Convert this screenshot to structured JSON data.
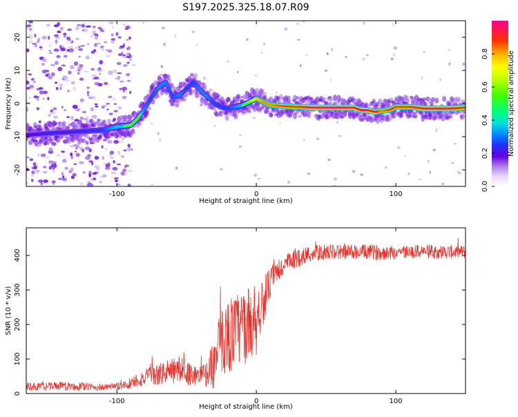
{
  "title": "S197.2025.325.18.07.R09",
  "colors": {
    "snr_line": "#e8322c",
    "axis": "#000000",
    "colormap": [
      "#ffffff",
      "#d8b8f0",
      "#a060e8",
      "#6a00e0",
      "#3050ff",
      "#00d0ff",
      "#00ff80",
      "#40ff00",
      "#ffff00",
      "#ffb000",
      "#ff3000",
      "#ff0090"
    ]
  },
  "chart_data": [
    {
      "id": "spectrogram",
      "type": "heatmap",
      "xlabel": "Height of straight line (km)",
      "ylabel": "Frequency (Hz)",
      "xlim": [
        -165,
        150
      ],
      "ylim": [
        -25,
        25
      ],
      "xticks": [
        -100,
        0,
        100
      ],
      "xtick_labels": [
        "-100",
        "0",
        "100"
      ],
      "yticks": [
        -20,
        -10,
        0,
        10,
        20
      ],
      "ytick_labels": [
        "-20",
        "-10",
        "0",
        "10",
        "20"
      ],
      "ridge": {
        "x": [
          -165,
          -150,
          -130,
          -110,
          -100,
          -95,
          -90,
          -85,
          -80,
          -75,
          -70,
          -65,
          -60,
          -55,
          -50,
          -45,
          -40,
          -35,
          -30,
          -25,
          -20,
          -15,
          -10,
          -5,
          0,
          5,
          10,
          20,
          30,
          40,
          50,
          60,
          70,
          75,
          80,
          85,
          90,
          95,
          100,
          110,
          120,
          130,
          140,
          150
        ],
        "y": [
          -9.5,
          -9.0,
          -8.5,
          -8.0,
          -7.0,
          -6.8,
          -6.5,
          -4.5,
          -1.5,
          2.0,
          5.0,
          6.5,
          2.0,
          2.5,
          4.5,
          6.5,
          4.0,
          2.0,
          0.0,
          -1.0,
          -1.5,
          -1.0,
          -0.5,
          0.5,
          1.5,
          0.5,
          -0.5,
          -0.8,
          -1.0,
          -1.2,
          -1.2,
          -1.2,
          -1.2,
          -2.0,
          -2.0,
          -2.5,
          -2.2,
          -2.0,
          -1.0,
          -1.0,
          -1.5,
          -1.5,
          -1.5,
          -1.2
        ],
        "amplitude": [
          0.3,
          0.35,
          0.35,
          0.4,
          0.5,
          0.5,
          0.55,
          0.55,
          0.45,
          0.4,
          0.45,
          0.45,
          0.4,
          0.45,
          0.4,
          0.4,
          0.45,
          0.45,
          0.4,
          0.4,
          0.4,
          0.45,
          0.5,
          0.6,
          0.75,
          0.8,
          0.8,
          0.85,
          0.85,
          0.9,
          0.95,
          0.95,
          0.9,
          0.95,
          0.9,
          0.9,
          0.8,
          0.85,
          0.85,
          0.85,
          0.9,
          0.9,
          0.9,
          0.85
        ]
      },
      "colorbar": {
        "label": "Normalized spectral amplitude",
        "range": [
          0,
          1
        ],
        "ticks": [
          0.0,
          0.2,
          0.4,
          0.6,
          0.8
        ],
        "tick_labels": [
          "0.0",
          "0.2",
          "0.4",
          "0.6",
          "0.8"
        ]
      }
    },
    {
      "id": "snr",
      "type": "line",
      "xlabel": "Height of straight line (km)",
      "ylabel": "SNR (10 * v/v)",
      "xlim": [
        -165,
        150
      ],
      "ylim": [
        0,
        480
      ],
      "xticks": [
        -100,
        0,
        100
      ],
      "xtick_labels": [
        "-100",
        "0",
        "100"
      ],
      "yticks": [
        0,
        100,
        200,
        300,
        400
      ],
      "ytick_labels": [
        "0",
        "100",
        "200",
        "300",
        "400"
      ],
      "series": [
        {
          "name": "SNR",
          "x": [
            -165,
            -155,
            -145,
            -135,
            -125,
            -115,
            -105,
            -100,
            -95,
            -90,
            -85,
            -80,
            -75,
            -70,
            -65,
            -60,
            -55,
            -50,
            -45,
            -40,
            -35,
            -30,
            -25,
            -20,
            -15,
            -10,
            -5,
            0,
            5,
            10,
            15,
            20,
            25,
            30,
            40,
            50,
            60,
            70,
            80,
            90,
            100,
            110,
            120,
            130,
            140,
            150
          ],
          "y": [
            20,
            20,
            22,
            20,
            20,
            18,
            18,
            20,
            25,
            30,
            40,
            45,
            50,
            55,
            60,
            65,
            70,
            60,
            55,
            50,
            60,
            90,
            150,
            170,
            180,
            190,
            200,
            220,
            270,
            320,
            350,
            370,
            385,
            395,
            405,
            410,
            410,
            410,
            410,
            408,
            410,
            410,
            412,
            410,
            410,
            410
          ],
          "noise": [
            12,
            12,
            12,
            12,
            12,
            10,
            10,
            12,
            15,
            18,
            22,
            26,
            30,
            32,
            35,
            40,
            40,
            35,
            32,
            30,
            40,
            80,
            100,
            110,
            110,
            110,
            110,
            110,
            70,
            45,
            35,
            30,
            30,
            30,
            25,
            22,
            22,
            22,
            22,
            22,
            22,
            20,
            20,
            20,
            20,
            20
          ]
        }
      ]
    }
  ]
}
